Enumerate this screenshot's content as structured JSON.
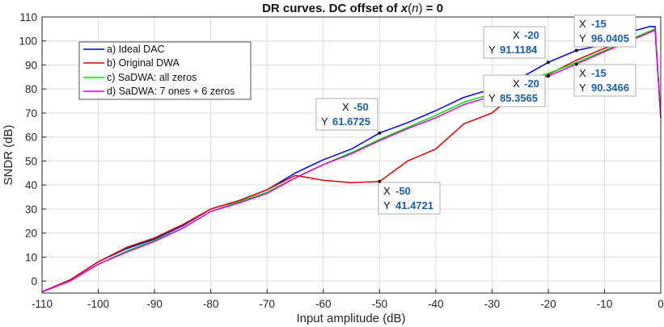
{
  "chart_data": {
    "type": "line",
    "title_prefix": "DR curves. DC offset of ",
    "title_var": "x",
    "title_open": "(",
    "title_arg": "n",
    "title_close": ")",
    "title_suffix": " = 0",
    "xlabel": "Input amplitude (dB)",
    "ylabel": "SNDR (dB)",
    "xlim": [
      -110,
      0
    ],
    "ylim": [
      -5,
      110
    ],
    "xticks": [
      -110,
      -100,
      -90,
      -80,
      -70,
      -60,
      -50,
      -40,
      -30,
      -20,
      -10,
      0
    ],
    "yticks": [
      0,
      10,
      20,
      30,
      40,
      50,
      60,
      70,
      80,
      90,
      100,
      110
    ],
    "grid": true,
    "legend_position": "top-left",
    "series": [
      {
        "name": "a) Ideal DAC",
        "color": "#0000e0",
        "x": [
          -110,
          -105,
          -100,
          -95,
          -90,
          -85,
          -80,
          -75,
          -70,
          -65,
          -60,
          -55,
          -50,
          -45,
          -40,
          -35,
          -30,
          -25,
          -20,
          -15,
          -10,
          -5,
          -2,
          -1,
          0
        ],
        "y": [
          -4.5,
          0.5,
          8,
          13.5,
          17.5,
          23,
          30,
          33.5,
          38,
          45,
          50.5,
          55,
          61.6725,
          66,
          71,
          76.5,
          80,
          84.5,
          91.1184,
          96.0405,
          98.5,
          104,
          106,
          106,
          68
        ]
      },
      {
        "name": "b) Original DWA",
        "color": "#e00000",
        "x": [
          -110,
          -105,
          -100,
          -95,
          -90,
          -85,
          -80,
          -75,
          -70,
          -65,
          -60,
          -55,
          -50,
          -45,
          -40,
          -35,
          -30,
          -25,
          -20,
          -15,
          -10,
          -5,
          -2,
          -1,
          0
        ],
        "y": [
          -4.5,
          0.5,
          8,
          14,
          18,
          23.5,
          30,
          33.5,
          38,
          44,
          42,
          41,
          41.4721,
          50,
          55,
          65.5,
          70,
          80,
          86,
          92,
          97,
          101,
          104,
          104.5,
          68
        ]
      },
      {
        "name": "c) SaDWA: all zeros",
        "color": "#00e000",
        "x": [
          -110,
          -105,
          -100,
          -95,
          -90,
          -85,
          -80,
          -75,
          -70,
          -65,
          -60,
          -55,
          -50,
          -45,
          -40,
          -35,
          -30,
          -25,
          -20,
          -15,
          -10,
          -5,
          -2,
          -1,
          0
        ],
        "y": [
          -4.5,
          0,
          7,
          12.5,
          17,
          22,
          29,
          33,
          37,
          43,
          48.5,
          53.5,
          59,
          64,
          69,
          74.5,
          78,
          83,
          86.5,
          91,
          96,
          101,
          104,
          105,
          68
        ]
      },
      {
        "name": "d) SaDWA: 7 ones + 6 zeros",
        "color": "#e000e0",
        "x": [
          -110,
          -105,
          -100,
          -95,
          -90,
          -85,
          -80,
          -75,
          -70,
          -65,
          -60,
          -55,
          -50,
          -45,
          -40,
          -35,
          -30,
          -25,
          -20,
          -15,
          -10,
          -5,
          -2,
          -1,
          0
        ],
        "y": [
          -4.5,
          0,
          7,
          12,
          16.5,
          22,
          29,
          32.5,
          36.5,
          43,
          48.5,
          53,
          58.5,
          63.5,
          68,
          73.5,
          77,
          82,
          85.3565,
          90.3466,
          95.5,
          100.5,
          103.5,
          104.5,
          68
        ]
      }
    ],
    "datatips": [
      {
        "id": "tip-ideal-m50",
        "x_label": "X",
        "y_label": "Y",
        "x": "-50",
        "y": "61.6725",
        "px": -50,
        "py": 61.6725
      },
      {
        "id": "tip-dwa-m50",
        "x_label": "X",
        "y_label": "Y",
        "x": "-50",
        "y": "41.4721",
        "px": -50,
        "py": 41.4721
      },
      {
        "id": "tip-ideal-m20",
        "x_label": "X",
        "y_label": "Y",
        "x": "-20",
        "y": "91.1184",
        "px": -20,
        "py": 91.1184
      },
      {
        "id": "tip-sadwa-m20",
        "x_label": "X",
        "y_label": "Y",
        "x": "-20",
        "y": "85.3565",
        "px": -20,
        "py": 85.3565
      },
      {
        "id": "tip-ideal-m15",
        "x_label": "X",
        "y_label": "Y",
        "x": "-15",
        "y": "96.0405",
        "px": -15,
        "py": 96.0405
      },
      {
        "id": "tip-sadwa-m15",
        "x_label": "X",
        "y_label": "Y",
        "x": "-15",
        "y": "90.3466",
        "px": -15,
        "py": 90.3466
      }
    ]
  }
}
